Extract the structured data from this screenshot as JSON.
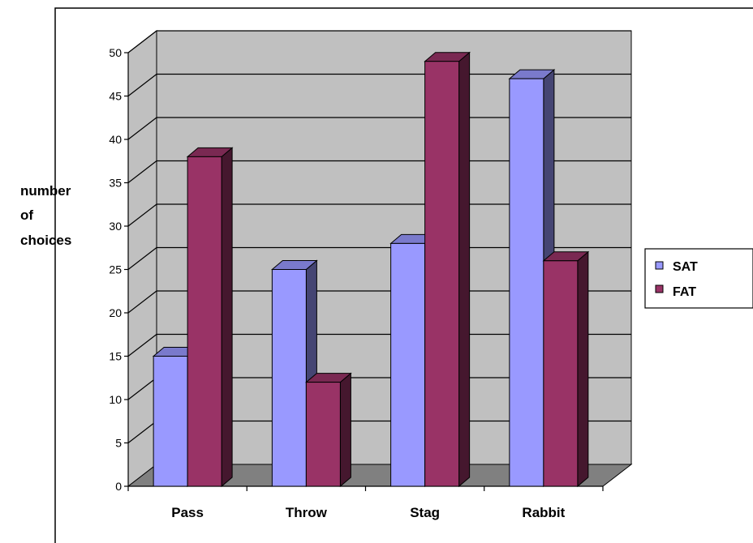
{
  "chart_data": {
    "type": "bar",
    "categories": [
      "Pass",
      "Throw",
      "Stag",
      "Rabbit"
    ],
    "series": [
      {
        "name": "SAT",
        "values": [
          15,
          25,
          28,
          47
        ],
        "color": "#9999ff"
      },
      {
        "name": "FAT",
        "values": [
          38,
          12,
          49,
          26
        ],
        "color": "#993366"
      }
    ],
    "ylabel_lines": [
      "number",
      "of",
      "choices"
    ],
    "ylim": [
      0,
      50
    ],
    "yticks": [
      "0",
      "5",
      "10",
      "15",
      "20",
      "25",
      "30",
      "35",
      "40",
      "45",
      "50"
    ],
    "grid": true,
    "legend_position": "right",
    "wall_color": "#c0c0c0",
    "floor_color": "#808080"
  }
}
